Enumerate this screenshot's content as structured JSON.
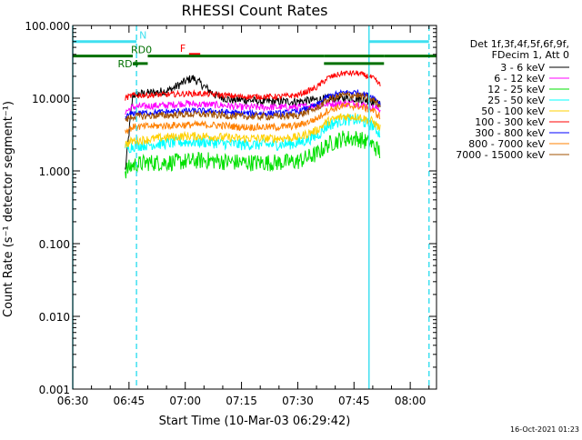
{
  "chart_data": {
    "type": "line",
    "title": "RHESSI Count Rates",
    "xlabel": "Start Time (10-Mar-03 06:29:42)",
    "ylabel": "Count Rate (s⁻¹ detector segment⁻¹)",
    "y_scale": "log",
    "ylim": [
      0.001,
      100
    ],
    "y_tick_labels": [
      "0.001",
      "0.010",
      "0.100",
      "1.000",
      "10.000",
      "100.000"
    ],
    "xlim": [
      "06:30",
      "08:07"
    ],
    "x_tick_labels": [
      "06:30",
      "06:45",
      "07:00",
      "07:15",
      "07:30",
      "07:45",
      "08:00"
    ],
    "legend_header": [
      "Det 1f,3f,4f,5f,6f,9f,",
      "FDecim 1, Att 0"
    ],
    "legend_position": "right",
    "grid": false,
    "series": [
      {
        "name": "3 - 6 keV",
        "color": "#000000",
        "x": [
          "06:44",
          "06:46",
          "06:48",
          "06:52",
          "06:56",
          "07:00",
          "07:02",
          "07:04",
          "07:08",
          "07:12",
          "07:16",
          "07:20",
          "07:25",
          "07:30",
          "07:35",
          "07:40",
          "07:45",
          "07:48",
          "07:50",
          "07:52"
        ],
        "values": [
          1.0,
          11,
          11.5,
          12,
          13,
          17,
          19,
          16,
          11,
          9.5,
          9.5,
          9,
          9,
          9,
          9.5,
          10,
          10,
          9.5,
          9,
          8
        ]
      },
      {
        "name": "6 - 12 keV",
        "color": "#ff00ff",
        "x": [
          "06:44",
          "06:46",
          "06:50",
          "06:55",
          "07:00",
          "07:03",
          "07:06",
          "07:10",
          "07:15",
          "07:20",
          "07:25",
          "07:30",
          "07:35",
          "07:40",
          "07:45",
          "07:48",
          "07:50",
          "07:52"
        ],
        "values": [
          6.5,
          7.5,
          7.8,
          8,
          8.5,
          8.2,
          8.2,
          8,
          7.5,
          7.5,
          7.5,
          7.5,
          8,
          8.5,
          8.5,
          8,
          7.5,
          7
        ]
      },
      {
        "name": "12 - 25 keV",
        "color": "#00e000",
        "x": [
          "06:44",
          "06:46",
          "06:50",
          "06:55",
          "07:00",
          "07:05",
          "07:10",
          "07:15",
          "07:20",
          "07:25",
          "07:30",
          "07:35",
          "07:38",
          "07:42",
          "07:46",
          "07:50",
          "07:52"
        ],
        "values": [
          1.0,
          1.2,
          1.3,
          1.3,
          1.35,
          1.4,
          1.35,
          1.3,
          1.3,
          1.3,
          1.35,
          1.7,
          2.3,
          2.8,
          2.8,
          2.3,
          1.8
        ]
      },
      {
        "name": "25 - 50 keV",
        "color": "#00ffff",
        "x": [
          "06:44",
          "06:46",
          "06:50",
          "06:55",
          "07:00",
          "07:05",
          "07:10",
          "07:15",
          "07:20",
          "07:25",
          "07:30",
          "07:35",
          "07:38",
          "07:42",
          "07:46",
          "07:50",
          "07:52"
        ],
        "values": [
          2.0,
          2.2,
          2.3,
          2.4,
          2.5,
          2.5,
          2.4,
          2.3,
          2.3,
          2.3,
          2.4,
          3.0,
          4.2,
          5.0,
          5.0,
          4.2,
          3.2
        ]
      },
      {
        "name": "50 - 100 keV",
        "color": "#ffd000",
        "x": [
          "06:44",
          "06:46",
          "06:50",
          "06:55",
          "07:00",
          "07:05",
          "07:10",
          "07:15",
          "07:20",
          "07:25",
          "07:30",
          "07:35",
          "07:38",
          "07:42",
          "07:46",
          "07:50",
          "07:52"
        ],
        "values": [
          2.3,
          2.6,
          2.7,
          2.9,
          3.0,
          3.0,
          2.9,
          2.8,
          2.8,
          2.8,
          2.9,
          3.6,
          4.8,
          5.6,
          5.6,
          4.8,
          3.8
        ]
      },
      {
        "name": "100 - 300 keV",
        "color": "#ff0000",
        "x": [
          "06:44",
          "06:46",
          "06:50",
          "06:55",
          "07:00",
          "07:05",
          "07:10",
          "07:15",
          "07:20",
          "07:25",
          "07:30",
          "07:35",
          "07:38",
          "07:42",
          "07:46",
          "07:50",
          "07:52"
        ],
        "values": [
          10,
          11,
          11,
          11.2,
          11.5,
          11.5,
          11,
          10.5,
          10.5,
          10.5,
          11,
          14,
          19,
          22,
          22,
          19,
          15
        ]
      },
      {
        "name": "300 - 800 keV",
        "color": "#0000ff",
        "x": [
          "06:44",
          "06:46",
          "06:50",
          "06:55",
          "07:00",
          "07:05",
          "07:10",
          "07:15",
          "07:20",
          "07:25",
          "07:30",
          "07:35",
          "07:38",
          "07:42",
          "07:46",
          "07:50",
          "07:52"
        ],
        "values": [
          5.5,
          6.2,
          6.3,
          6.5,
          6.7,
          6.7,
          6.5,
          6.2,
          6.2,
          6.2,
          6.5,
          8.0,
          10.5,
          12,
          12,
          10.5,
          8.5
        ]
      },
      {
        "name": "800 - 7000 keV",
        "color": "#ff8000",
        "x": [
          "06:44",
          "06:46",
          "06:50",
          "06:55",
          "07:00",
          "07:05",
          "07:10",
          "07:15",
          "07:20",
          "07:25",
          "07:30",
          "07:35",
          "07:38",
          "07:42",
          "07:46",
          "07:50",
          "07:52"
        ],
        "values": [
          3.5,
          4.0,
          4.1,
          4.2,
          4.3,
          4.3,
          4.2,
          4.0,
          4.0,
          4.0,
          4.2,
          5.2,
          6.8,
          7.8,
          7.8,
          6.8,
          5.5
        ]
      },
      {
        "name": "7000 - 15000 keV",
        "color": "#a05000",
        "x": [
          "06:44",
          "06:46",
          "06:50",
          "06:55",
          "07:00",
          "07:05",
          "07:10",
          "07:15",
          "07:20",
          "07:25",
          "07:30",
          "07:35",
          "07:38",
          "07:42",
          "07:46",
          "07:50",
          "07:52"
        ],
        "values": [
          5.0,
          5.6,
          5.7,
          5.8,
          6.0,
          6.0,
          5.8,
          5.6,
          5.6,
          5.6,
          5.8,
          7.2,
          9.5,
          11,
          11,
          9.5,
          7.8
        ]
      }
    ],
    "vertical_markers": [
      {
        "time": "06:30",
        "style": "solid",
        "color": "#40e0f0"
      },
      {
        "time": "06:47",
        "style": "dashed",
        "color": "#40e0f0"
      },
      {
        "time": "07:49",
        "style": "solid",
        "color": "#40e0f0"
      },
      {
        "time": "08:05",
        "style": "dashed",
        "color": "#40e0f0"
      }
    ],
    "annotation_bars": [
      {
        "label": "N",
        "color": "#40e0f0",
        "level": 60,
        "intervals": [
          [
            "06:30",
            "06:47"
          ],
          [
            "07:49",
            "08:05"
          ]
        ]
      },
      {
        "label": "F",
        "color": "#ff0000",
        "level": 40,
        "intervals": [
          [
            "07:01",
            "07:04"
          ]
        ]
      },
      {
        "label": "RD0",
        "color": "#007000",
        "level": 38,
        "intervals": [
          [
            "06:30",
            "06:46"
          ],
          [
            "06:50",
            "07:37"
          ],
          [
            "07:37",
            "07:53"
          ],
          [
            "07:53",
            "08:07"
          ]
        ]
      },
      {
        "label": "RD4",
        "color": "#007000",
        "level": 30,
        "intervals": [
          [
            "06:46",
            "06:50"
          ],
          [
            "07:37",
            "07:53"
          ]
        ]
      }
    ]
  },
  "footer": {
    "timestamp": "16-Oct-2021 01:23"
  }
}
